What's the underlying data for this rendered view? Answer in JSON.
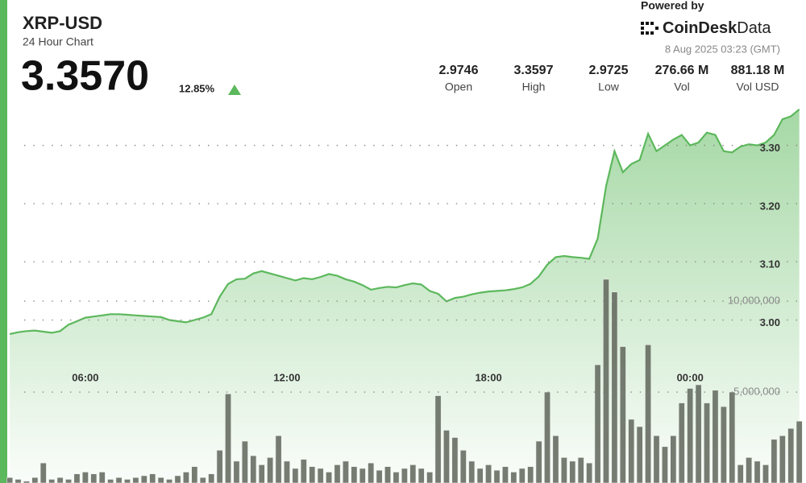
{
  "header": {
    "title": "XRP-USD",
    "subtitle": "24 Hour Chart",
    "price": "3.3570",
    "change": "12.85%",
    "powered_by": "Powered by",
    "brand": "CoinDesk",
    "brand_suffix": "Data",
    "timestamp": "8 Aug 2025 03:23 (GMT)"
  },
  "stats": [
    {
      "value": "2.9746",
      "label": "Open"
    },
    {
      "value": "3.3597",
      "label": "High"
    },
    {
      "value": "2.9725",
      "label": "Low"
    },
    {
      "value": "276.66 M",
      "label": "Vol"
    },
    {
      "value": "881.18 M",
      "label": "Vol USD"
    }
  ],
  "chart_data": {
    "type": "line",
    "x": [
      3.75,
      4,
      4.25,
      4.5,
      4.75,
      5,
      5.25,
      5.5,
      5.75,
      6,
      6.25,
      6.5,
      6.75,
      7,
      7.25,
      7.5,
      7.75,
      8,
      8.25,
      8.5,
      8.75,
      9,
      9.25,
      9.5,
      9.75,
      10,
      10.25,
      10.5,
      10.75,
      11,
      11.25,
      11.5,
      11.75,
      12,
      12.25,
      12.5,
      12.75,
      13,
      13.25,
      13.5,
      13.75,
      14,
      14.25,
      14.5,
      14.75,
      15,
      15.25,
      15.5,
      15.75,
      16,
      16.25,
      16.5,
      16.75,
      17,
      17.25,
      17.5,
      17.75,
      18,
      18.25,
      18.5,
      18.75,
      19,
      19.25,
      19.5,
      19.75,
      20,
      20.25,
      20.5,
      20.75,
      21,
      21.25,
      21.5,
      21.75,
      22,
      22.25,
      22.5,
      22.75,
      23,
      23.25,
      23.5,
      23.75,
      24,
      24.25,
      24.5,
      24.75,
      25,
      25.25,
      25.5,
      25.75,
      26,
      26.25,
      26.5,
      26.75,
      27,
      27.25
    ],
    "xlim": [
      3.7,
      27.33
    ],
    "xticks": [
      {
        "value": 6,
        "label": "06:00"
      },
      {
        "value": 12,
        "label": "12:00"
      },
      {
        "value": 18,
        "label": "18:00"
      },
      {
        "value": 24,
        "label": "00:00"
      }
    ],
    "ylim": [
      2.72,
      3.37
    ],
    "yticks": [
      {
        "value": 3,
        "label": "3.00"
      },
      {
        "value": 3.1,
        "label": "3.10"
      },
      {
        "value": 3.2,
        "label": "3.20"
      },
      {
        "value": 3.3,
        "label": "3.30"
      }
    ],
    "y2lim": [
      0,
      20800000
    ],
    "y2ticks": [
      {
        "value": 5000000,
        "label": "5,000,000"
      },
      {
        "value": 10000000,
        "label": "10,000,000"
      }
    ],
    "grid": true,
    "series": [
      {
        "color": "#5cb85c",
        "values": [
          2.976,
          2.979,
          2.981,
          2.982,
          2.98,
          2.978,
          2.981,
          2.992,
          2.998,
          3.004,
          3.006,
          3.008,
          3.01,
          3.01,
          3.009,
          3.008,
          3.007,
          3.006,
          3.005,
          3.0,
          2.998,
          2.996,
          3.0,
          3.004,
          3.01,
          3.04,
          3.062,
          3.07,
          3.071,
          3.08,
          3.084,
          3.08,
          3.076,
          3.072,
          3.068,
          3.072,
          3.07,
          3.074,
          3.079,
          3.076,
          3.07,
          3.066,
          3.06,
          3.052,
          3.055,
          3.057,
          3.056,
          3.06,
          3.063,
          3.061,
          3.05,
          3.045,
          3.032,
          3.038,
          3.04,
          3.044,
          3.047,
          3.049,
          3.05,
          3.051,
          3.053,
          3.056,
          3.062,
          3.075,
          3.095,
          3.108,
          3.11,
          3.108,
          3.107,
          3.105,
          3.14,
          3.23,
          3.29,
          3.254,
          3.268,
          3.275,
          3.32,
          3.29,
          3.3,
          3.31,
          3.318,
          3.3,
          3.305,
          3.322,
          3.318,
          3.29,
          3.288,
          3.298,
          3.302,
          3.3,
          3.305,
          3.318,
          3.345,
          3.35,
          3.362
        ]
      },
      {
        "type": "bar",
        "axis": "y2",
        "color": "#5f655b",
        "values": [
          300000,
          200000,
          100000,
          300000,
          1100000,
          200000,
          300000,
          200000,
          500000,
          600000,
          500000,
          600000,
          200000,
          300000,
          200000,
          300000,
          400000,
          500000,
          300000,
          200000,
          400000,
          600000,
          900000,
          300000,
          500000,
          1800000,
          4900000,
          1200000,
          2300000,
          1500000,
          1000000,
          1400000,
          2600000,
          1200000,
          800000,
          1300000,
          900000,
          800000,
          600000,
          1000000,
          1200000,
          900000,
          800000,
          1100000,
          700000,
          900000,
          600000,
          800000,
          1000000,
          800000,
          600000,
          4800000,
          2900000,
          2500000,
          1800000,
          1200000,
          800000,
          1000000,
          700000,
          900000,
          600000,
          800000,
          900000,
          2300000,
          5000000,
          2600000,
          1400000,
          1200000,
          1400000,
          1100000,
          6500000,
          11200000,
          10500000,
          7500000,
          3500000,
          3100000,
          7600000,
          2600000,
          2000000,
          2600000,
          4400000,
          5200000,
          5400000,
          4400000,
          5100000,
          4200000,
          5000000,
          1000000,
          1400000,
          1200000,
          1000000,
          2400000,
          2600000,
          3000000,
          3400000
        ]
      }
    ]
  }
}
